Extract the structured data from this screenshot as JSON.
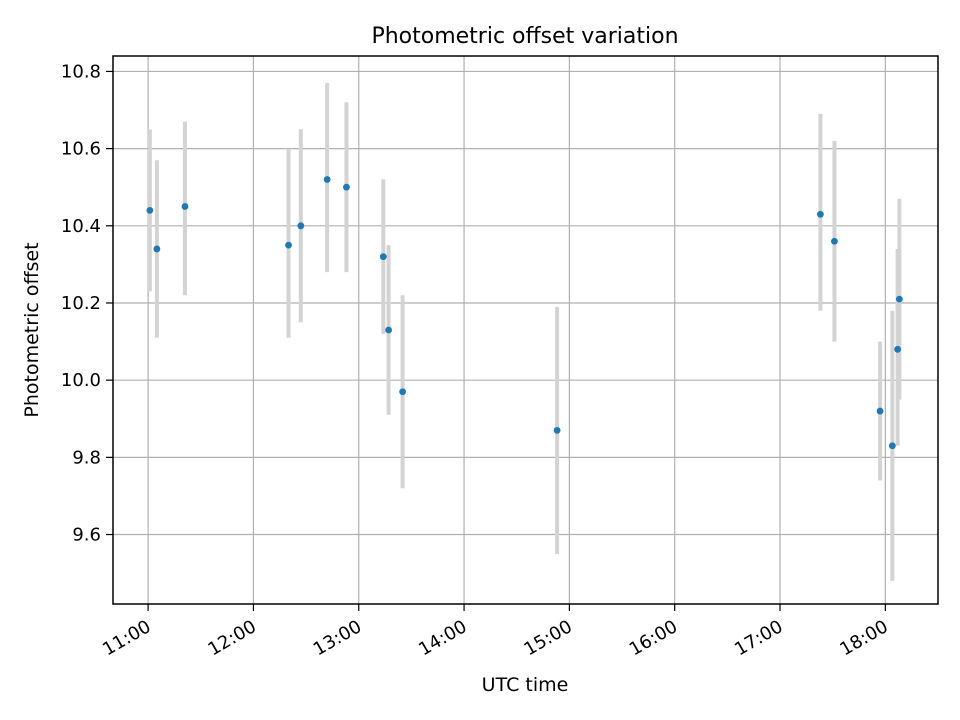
{
  "chart_data": {
    "type": "scatter",
    "title": "Photometric offset variation",
    "xlabel": "UTC time",
    "ylabel": "Photometric offset",
    "x_axis_type": "time",
    "xlim": [
      "10:40",
      "18:30"
    ],
    "ylim": [
      9.42,
      10.84
    ],
    "xticks": [
      "11:00",
      "12:00",
      "13:00",
      "14:00",
      "15:00",
      "16:00",
      "17:00",
      "18:00"
    ],
    "yticks": [
      "9.6",
      "9.8",
      "10.0",
      "10.2",
      "10.4",
      "10.6",
      "10.8"
    ],
    "grid": true,
    "colors": {
      "point": "#1f77b4",
      "errorbar": "#d3d3d3",
      "grid": "#b0b0b0"
    },
    "points": [
      {
        "x": "11:01",
        "y": 10.44,
        "ylow": 10.23,
        "yhigh": 10.65
      },
      {
        "x": "11:05",
        "y": 10.34,
        "ylow": 10.11,
        "yhigh": 10.57
      },
      {
        "x": "11:21",
        "y": 10.45,
        "ylow": 10.22,
        "yhigh": 10.67
      },
      {
        "x": "12:20",
        "y": 10.35,
        "ylow": 10.11,
        "yhigh": 10.6
      },
      {
        "x": "12:27",
        "y": 10.4,
        "ylow": 10.15,
        "yhigh": 10.65
      },
      {
        "x": "12:42",
        "y": 10.52,
        "ylow": 10.28,
        "yhigh": 10.77
      },
      {
        "x": "12:53",
        "y": 10.5,
        "ylow": 10.28,
        "yhigh": 10.72
      },
      {
        "x": "13:14",
        "y": 10.32,
        "ylow": 10.12,
        "yhigh": 10.52
      },
      {
        "x": "13:17",
        "y": 10.13,
        "ylow": 9.91,
        "yhigh": 10.35
      },
      {
        "x": "13:25",
        "y": 9.97,
        "ylow": 9.72,
        "yhigh": 10.22
      },
      {
        "x": "14:53",
        "y": 9.87,
        "ylow": 9.55,
        "yhigh": 10.19
      },
      {
        "x": "17:23",
        "y": 10.43,
        "ylow": 10.18,
        "yhigh": 10.69
      },
      {
        "x": "17:31",
        "y": 10.36,
        "ylow": 10.1,
        "yhigh": 10.62
      },
      {
        "x": "17:57",
        "y": 9.92,
        "ylow": 9.74,
        "yhigh": 10.1
      },
      {
        "x": "18:04",
        "y": 9.83,
        "ylow": 9.48,
        "yhigh": 10.18
      },
      {
        "x": "18:07",
        "y": 10.08,
        "ylow": 9.83,
        "yhigh": 10.34
      },
      {
        "x": "18:08",
        "y": 10.21,
        "ylow": 9.95,
        "yhigh": 10.47
      }
    ]
  }
}
